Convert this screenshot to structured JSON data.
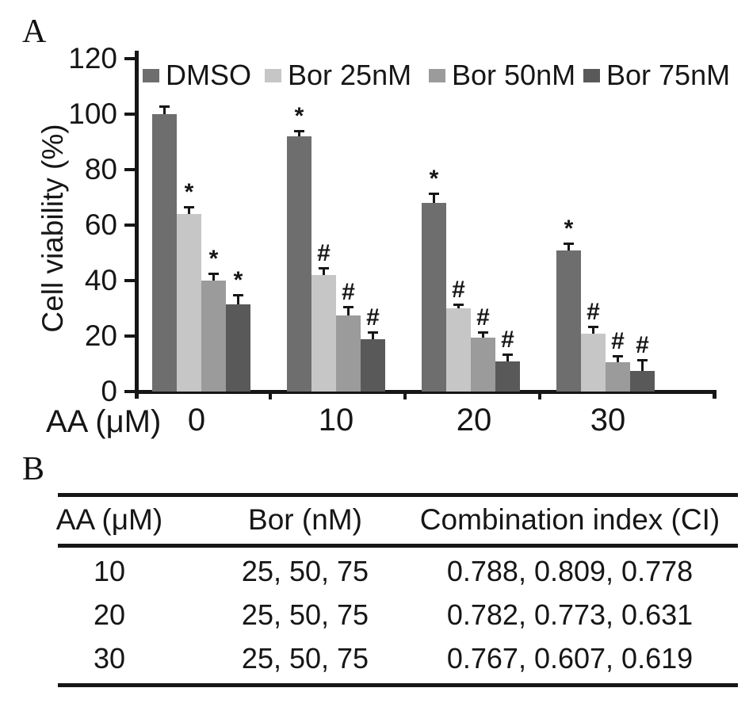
{
  "panel_a": {
    "label": "A"
  },
  "chart_data": {
    "type": "bar",
    "title": "",
    "ylabel": "Cell viability (%)",
    "xlabel": "AA (μM)",
    "categories": [
      "0",
      "10",
      "20",
      "30"
    ],
    "ylim": [
      0,
      120
    ],
    "yticks": [
      0,
      20,
      40,
      60,
      80,
      100,
      120
    ],
    "grid": false,
    "legend_position": "top-inside",
    "series": [
      {
        "name": "DMSO",
        "color": "#6e6e6e",
        "values": [
          100,
          92,
          68,
          51
        ],
        "errors": [
          3,
          2,
          3.5,
          2.5
        ],
        "annotations": [
          "",
          "*",
          "*",
          "*"
        ]
      },
      {
        "name": "Bor 25nM",
        "color": "#c6c6c6",
        "values": [
          64,
          42,
          30,
          21
        ],
        "errors": [
          2.5,
          2.5,
          1.5,
          2.5
        ],
        "annotations": [
          "*",
          "#",
          "#",
          "#"
        ]
      },
      {
        "name": "Bor 50nM",
        "color": "#9b9b9b",
        "values": [
          40,
          27.5,
          19.5,
          10.5
        ],
        "errors": [
          2.5,
          3,
          2,
          2.5
        ],
        "annotations": [
          "*",
          "#",
          "#",
          "#"
        ]
      },
      {
        "name": "Bor 75nM",
        "color": "#595959",
        "values": [
          31.5,
          19,
          11,
          7.5
        ],
        "errors": [
          3.5,
          2.5,
          2.5,
          4
        ],
        "annotations": [
          "*",
          "#",
          "#",
          "#"
        ]
      }
    ]
  },
  "panel_b": {
    "label": "B",
    "table": {
      "headers": [
        "AA (μM)",
        "Bor (nM)",
        "Combination index (CI)"
      ],
      "rows": [
        [
          "10",
          "25, 50, 75",
          "0.788, 0.809, 0.778"
        ],
        [
          "20",
          "25, 50, 75",
          "0.782, 0.773, 0.631"
        ],
        [
          "30",
          "25, 50, 75",
          "0.767, 0.607, 0.619"
        ]
      ]
    }
  }
}
